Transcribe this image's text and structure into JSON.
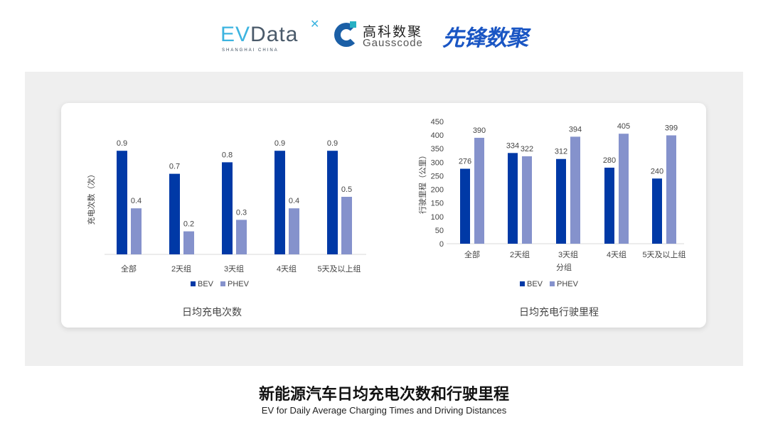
{
  "logos": {
    "evdata": "EVData",
    "evdata_sub": "SHANGHAI CHINA",
    "gauss_cn": "高科数聚",
    "gauss_en": "Gausscode",
    "xianfeng": "先锋数聚"
  },
  "colors": {
    "bev": "#0039a6",
    "phev": "#8592cc",
    "panel": "#efefef"
  },
  "chart_data": [
    {
      "type": "bar",
      "title": "日均充电次数",
      "ylabel": "充电次数（次）",
      "xlabel": "",
      "categories": [
        "全部",
        "2天组",
        "3天组",
        "4天组",
        "5天及以上组"
      ],
      "series": [
        {
          "name": "BEV",
          "values": [
            0.9,
            0.7,
            0.8,
            0.9,
            0.9
          ]
        },
        {
          "name": "PHEV",
          "values": [
            0.4,
            0.2,
            0.3,
            0.4,
            0.5
          ]
        }
      ],
      "ylim": [
        0,
        1.0
      ],
      "yaxis_visible": false,
      "grid": false,
      "legend": "bottom"
    },
    {
      "type": "bar",
      "title": "日均充电行驶里程",
      "ylabel": "行驶里程（公里）",
      "xlabel": "分组",
      "categories": [
        "全部",
        "2天组",
        "3天组",
        "4天组",
        "5天及以上组"
      ],
      "series": [
        {
          "name": "BEV",
          "values": [
            276,
            334,
            312,
            280,
            240
          ]
        },
        {
          "name": "PHEV",
          "values": [
            390,
            322,
            394,
            405,
            399
          ]
        }
      ],
      "ylim": [
        0,
        450
      ],
      "yticks": [
        0,
        50,
        100,
        150,
        200,
        250,
        300,
        350,
        400,
        450
      ],
      "grid": false,
      "legend": "bottom"
    }
  ],
  "footer": {
    "title": "新能源汽车日均充电次数和行驶里程",
    "subtitle": "EV for Daily Average Charging Times and Driving Distances"
  }
}
